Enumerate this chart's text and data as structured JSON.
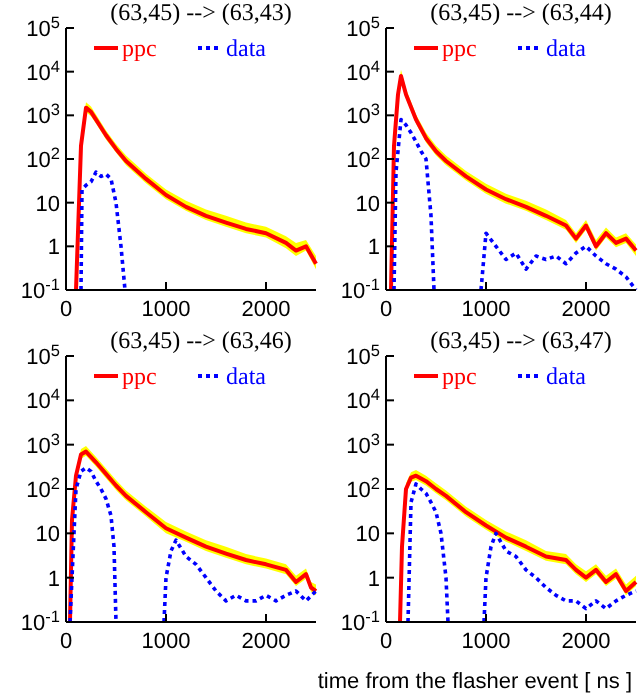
{
  "chart_data": [
    {
      "type": "line",
      "title": "(63,45) --> (63,43)",
      "log": "y",
      "xlim": [
        0,
        2500
      ],
      "xticks": [
        0,
        1000,
        2000
      ],
      "ylim": [
        0.1,
        100000
      ],
      "yticks": [
        {
          "value": 0.1,
          "label": "10$^{-1}$"
        },
        {
          "value": 1,
          "label": "1"
        },
        {
          "value": 10,
          "label": "10"
        },
        {
          "value": 100,
          "label": "10$^{2}$"
        },
        {
          "value": 1000,
          "label": "10$^{3}$"
        },
        {
          "value": 10000,
          "label": "10$^{4}$"
        },
        {
          "value": 100000,
          "label": "10$^{5}$"
        }
      ],
      "legend": "top",
      "marker": "none",
      "series": [
        {
          "name": "ppc",
          "color": "#ff0000",
          "line_style": "solid",
          "x": [
            100,
            150,
            200,
            250,
            300,
            400,
            500,
            600,
            800,
            1000,
            1200,
            1400,
            1600,
            1800,
            2000,
            2200,
            2300,
            2400,
            2500
          ],
          "values": [
            0.1,
            200,
            1500,
            1200,
            800,
            350,
            170,
            90,
            35,
            15,
            8,
            5,
            3.5,
            2.5,
            2,
            1.2,
            0.8,
            1,
            0.4
          ],
          "upper": [
            0.1,
            260,
            2000,
            1600,
            1050,
            450,
            220,
            120,
            46,
            20,
            11,
            7,
            5,
            3.5,
            2.8,
            1.7,
            1.2,
            1.4,
            0.6
          ],
          "lower": [
            0.1,
            150,
            1200,
            950,
            650,
            280,
            140,
            72,
            28,
            12,
            6.5,
            4,
            2.8,
            2,
            1.6,
            0.9,
            0.6,
            0.8,
            0.3
          ]
        },
        {
          "name": "data",
          "color": "#0000ff",
          "line_style": "dotted",
          "x": [
            150,
            160,
            200,
            250,
            300,
            350,
            400,
            450,
            500,
            550,
            590
          ],
          "values": [
            0.1,
            20,
            25,
            30,
            50,
            40,
            45,
            35,
            10,
            1,
            0.1
          ]
        }
      ]
    },
    {
      "type": "line",
      "title": "(63,45) --> (63,44)",
      "log": "y",
      "xlim": [
        0,
        2500
      ],
      "xticks": [
        0,
        1000,
        2000
      ],
      "ylim": [
        0.1,
        100000
      ],
      "yticks": [
        {
          "value": 0.1,
          "label": "10$^{-1}$"
        },
        {
          "value": 1,
          "label": "1"
        },
        {
          "value": 10,
          "label": "10"
        },
        {
          "value": 100,
          "label": "10$^{2}$"
        },
        {
          "value": 1000,
          "label": "10$^{3}$"
        },
        {
          "value": 10000,
          "label": "10$^{4}$"
        },
        {
          "value": 100000,
          "label": "10$^{5}$"
        }
      ],
      "legend": "top",
      "marker": "none",
      "series": [
        {
          "name": "ppc",
          "color": "#ff0000",
          "line_style": "solid",
          "x": [
            50,
            80,
            120,
            150,
            200,
            300,
            400,
            500,
            600,
            800,
            1000,
            1200,
            1400,
            1600,
            1800,
            1900,
            2000,
            2100,
            2200,
            2300,
            2400,
            2500
          ],
          "values": [
            0.1,
            200,
            3000,
            8000,
            3000,
            800,
            300,
            150,
            90,
            40,
            20,
            12,
            8,
            5,
            3,
            1.5,
            3,
            1,
            2,
            1.2,
            1.5,
            0.8
          ],
          "upper": [
            0.1,
            260,
            4000,
            11000,
            4000,
            1050,
            400,
            200,
            120,
            53,
            27,
            16,
            11,
            7,
            4,
            2,
            4,
            1.4,
            2.7,
            1.6,
            2,
            1.1
          ],
          "lower": [
            0.1,
            150,
            2400,
            6500,
            2400,
            650,
            240,
            120,
            72,
            32,
            16,
            9.5,
            6.5,
            4,
            2.4,
            1.2,
            2.4,
            0.8,
            1.6,
            0.95,
            1.2,
            0.6
          ]
        },
        {
          "name": "data",
          "color": "#0000ff",
          "line_style": "dotted",
          "x": [
            80,
            100,
            150,
            200,
            250,
            300,
            350,
            400,
            450,
            480,
            490,
            950,
            1000,
            1100,
            1200,
            1300,
            1400,
            1500,
            1600,
            1700,
            1800,
            1900,
            2000,
            2100,
            2200,
            2300,
            2400,
            2500
          ],
          "values": [
            0.1,
            50,
            800,
            600,
            400,
            250,
            150,
            100,
            5,
            0.1,
            null,
            0.1,
            2,
            1,
            0.5,
            0.7,
            0.3,
            0.6,
            0.5,
            0.6,
            0.4,
            0.7,
            1,
            0.6,
            0.4,
            0.3,
            0.2,
            0.1
          ]
        }
      ]
    },
    {
      "type": "line",
      "title": "(63,45) --> (63,46)",
      "log": "y",
      "xlim": [
        0,
        2500
      ],
      "xticks": [
        0,
        1000,
        2000
      ],
      "ylim": [
        0.1,
        100000
      ],
      "yticks": [
        {
          "value": 0.1,
          "label": "10$^{-1}$"
        },
        {
          "value": 1,
          "label": "1"
        },
        {
          "value": 10,
          "label": "10"
        },
        {
          "value": 100,
          "label": "10$^{2}$"
        },
        {
          "value": 1000,
          "label": "10$^{3}$"
        },
        {
          "value": 10000,
          "label": "10$^{4}$"
        },
        {
          "value": 100000,
          "label": "10$^{5}$"
        }
      ],
      "legend": "top",
      "marker": "none",
      "series": [
        {
          "name": "ppc",
          "color": "#ff0000",
          "line_style": "solid",
          "x": [
            40,
            60,
            100,
            150,
            200,
            300,
            400,
            500,
            600,
            800,
            1000,
            1200,
            1400,
            1600,
            1800,
            2000,
            2200,
            2300,
            2400,
            2450,
            2500
          ],
          "values": [
            0.1,
            20,
            200,
            600,
            700,
            400,
            220,
            120,
            70,
            30,
            13,
            8,
            5,
            3.5,
            2.5,
            2,
            1.5,
            0.8,
            1.2,
            0.6,
            0.5
          ],
          "upper": [
            0.1,
            27,
            270,
            800,
            930,
            530,
            290,
            160,
            93,
            40,
            18,
            11,
            7,
            5,
            3.4,
            2.7,
            2,
            1.1,
            1.6,
            0.8,
            0.7
          ],
          "lower": [
            0.1,
            16,
            160,
            480,
            560,
            320,
            175,
            95,
            56,
            24,
            10,
            6.5,
            4,
            2.8,
            2,
            1.6,
            1.2,
            0.65,
            0.95,
            0.48,
            0.4
          ]
        },
        {
          "name": "data",
          "color": "#0000ff",
          "line_style": "dotted",
          "x": [
            40,
            60,
            100,
            150,
            200,
            250,
            300,
            350,
            400,
            450,
            480,
            500,
            510,
            980,
            1000,
            1050,
            1100,
            1200,
            1300,
            1400,
            1500,
            1600,
            1700,
            1800,
            1900,
            2000,
            2100,
            2200,
            2300,
            2400,
            2500
          ],
          "values": [
            0.1,
            1,
            100,
            250,
            300,
            250,
            150,
            100,
            60,
            25,
            5,
            0.1,
            null,
            0.1,
            1,
            4,
            7,
            3,
            2,
            1,
            0.5,
            0.3,
            0.4,
            0.3,
            0.3,
            0.4,
            0.3,
            0.4,
            0.5,
            0.3,
            0.5
          ]
        }
      ]
    },
    {
      "type": "line",
      "title": "(63,45) --> (63,47)",
      "xlabel": "time from the flasher event [ ns ]",
      "log": "y",
      "xlim": [
        0,
        2500
      ],
      "xticks": [
        0,
        1000,
        2000
      ],
      "ylim": [
        0.1,
        100000
      ],
      "yticks": [
        {
          "value": 0.1,
          "label": "10$^{-1}$"
        },
        {
          "value": 1,
          "label": "1"
        },
        {
          "value": 10,
          "label": "10"
        },
        {
          "value": 100,
          "label": "10$^{2}$"
        },
        {
          "value": 1000,
          "label": "10$^{3}$"
        },
        {
          "value": 10000,
          "label": "10$^{4}$"
        },
        {
          "value": 100000,
          "label": "10$^{5}$"
        }
      ],
      "legend": "top",
      "marker": "none",
      "series": [
        {
          "name": "ppc",
          "color": "#ff0000",
          "line_style": "solid",
          "x": [
            140,
            160,
            200,
            250,
            300,
            400,
            500,
            600,
            800,
            1000,
            1200,
            1400,
            1600,
            1800,
            1900,
            2000,
            2100,
            2200,
            2300,
            2400,
            2500
          ],
          "values": [
            0.1,
            5,
            100,
            180,
            200,
            150,
            100,
            70,
            30,
            15,
            8,
            5,
            3,
            2.5,
            1.5,
            1,
            1.5,
            0.8,
            1.2,
            0.5,
            0.8
          ],
          "upper": [
            0.1,
            7,
            135,
            240,
            270,
            200,
            135,
            93,
            40,
            20,
            11,
            7,
            4,
            3.4,
            2,
            1.4,
            2,
            1.1,
            1.6,
            0.7,
            1.1
          ],
          "lower": [
            0.1,
            4,
            80,
            145,
            160,
            120,
            80,
            56,
            24,
            12,
            6.5,
            4,
            2.4,
            2,
            1.2,
            0.8,
            1.2,
            0.65,
            0.95,
            0.4,
            0.65
          ]
        },
        {
          "name": "data",
          "color": "#0000ff",
          "line_style": "dotted",
          "x": [
            220,
            250,
            300,
            350,
            400,
            450,
            500,
            550,
            600,
            620,
            630,
            980,
            1000,
            1050,
            1100,
            1200,
            1300,
            1400,
            1500,
            1600,
            1700,
            1800,
            1900,
            2000,
            2100,
            2200,
            2300,
            2400,
            2500
          ],
          "values": [
            0.1,
            50,
            130,
            100,
            80,
            50,
            30,
            10,
            1,
            0.1,
            null,
            0.1,
            1,
            5,
            10,
            4,
            3,
            1.5,
            1,
            0.6,
            0.4,
            0.3,
            0.3,
            0.2,
            0.3,
            0.2,
            0.3,
            0.4,
            0.5
          ]
        }
      ]
    }
  ]
}
